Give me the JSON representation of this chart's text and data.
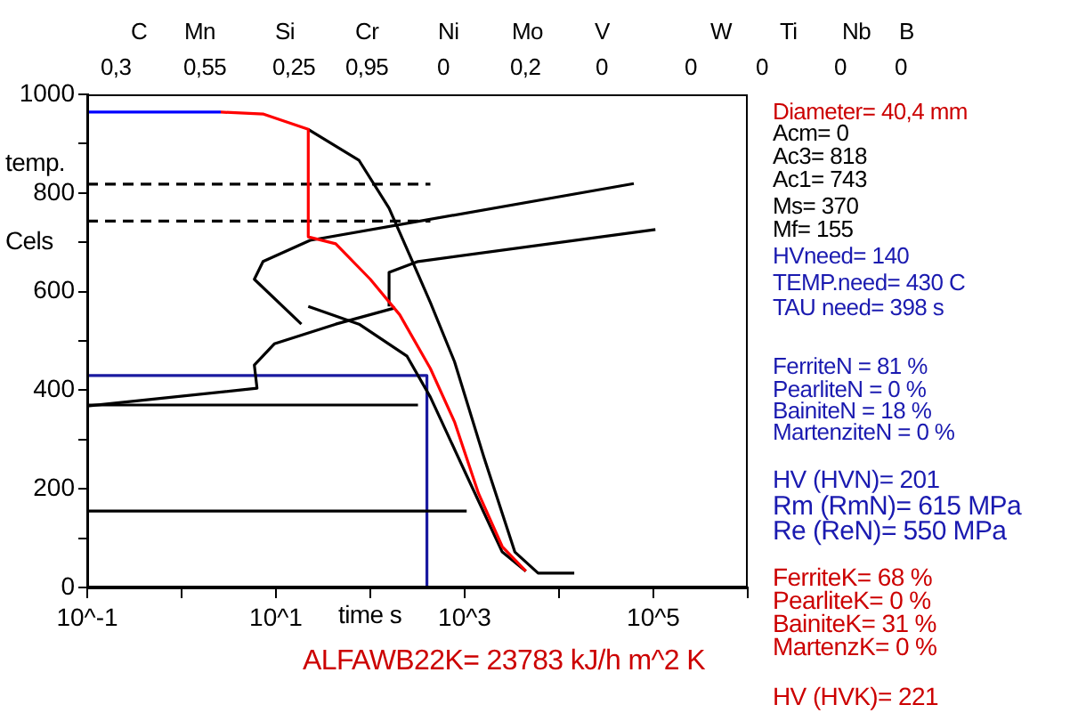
{
  "chart_data": {
    "type": "line",
    "xlabel": "time s",
    "ylabel": "temp. Cels",
    "log": "x",
    "grid": false,
    "legend": false,
    "marker": "none",
    "xlim": [
      0.1,
      1000000
    ],
    "ylim": [
      0,
      1000
    ],
    "xticks": [
      {
        "value": 0.1,
        "label": "10^-1"
      },
      {
        "value": 1,
        "label": null
      },
      {
        "value": 10,
        "label": "10^1"
      },
      {
        "value": 100,
        "label": null
      },
      {
        "value": 1000,
        "label": "10^3"
      },
      {
        "value": 10000,
        "label": null
      },
      {
        "value": 100000,
        "label": "10^5"
      },
      {
        "value": 1000000,
        "label": null
      }
    ],
    "yticks": [
      0,
      {
        "value": 100,
        "label": null
      },
      200,
      {
        "value": 300,
        "label": null
      },
      400,
      {
        "value": 500,
        "label": null
      },
      600,
      {
        "value": 700,
        "label": null
      },
      800,
      {
        "value": 900,
        "label": null
      },
      1000
    ],
    "series": [
      {
        "color": "#0000ff",
        "x": [
          0.1,
          2.6
        ],
        "values": [
          964,
          964
        ]
      },
      {
        "color": "#ff0000",
        "x": [
          2.6,
          7.4,
          22,
          22,
          43,
          100,
          205,
          433,
          780,
          1400,
          2500,
          4450
        ],
        "values": [
          964,
          960,
          929,
          711,
          697,
          625,
          553,
          444,
          336,
          191,
          83,
          33
        ]
      },
      {
        "color": "#000000",
        "x": [
          22,
          76,
          158,
          280,
          433,
          780,
          1600,
          3400,
          6000,
          14500
        ],
        "values": [
          929,
          866,
          769,
          661,
          578,
          458,
          264,
          72,
          29,
          29
        ]
      },
      {
        "color": "#000000",
        "x": [
          22,
          76,
          245,
          433,
          1050,
          2500,
          4450
        ],
        "values": [
          570,
          534,
          469,
          386,
          227,
          72,
          33
        ]
      },
      {
        "color": "#000000",
        "x": [
          18.6,
          5.9,
          7.3,
          23,
          62000
        ],
        "values": [
          534,
          625,
          661,
          704,
          819
        ]
      },
      {
        "color": "#000000",
        "x": [
          158,
          158,
          320,
          105000
        ],
        "values": [
          570,
          639,
          661,
          726
        ]
      },
      {
        "color": "#000000",
        "x": [
          0.1,
          6.3,
          5.9,
          9.6,
          43,
          183
        ],
        "values": [
          368,
          404,
          451,
          494,
          534,
          567
        ]
      },
      {
        "color": "#000000",
        "x": [
          0.1,
          320
        ],
        "values": [
          370,
          370
        ]
      },
      {
        "color": "#000000",
        "x": [
          0.1,
          1050
        ],
        "values": [
          155,
          155
        ]
      },
      {
        "color": "#000000",
        "line_style": "dashed",
        "x": [
          0.1,
          433
        ],
        "values": [
          818,
          818
        ]
      },
      {
        "color": "#000000",
        "line_style": "dashed",
        "x": [
          0.1,
          433
        ],
        "values": [
          743,
          743
        ]
      },
      {
        "color": "#1a1aa0",
        "x": [
          0.1,
          398,
          398
        ],
        "values": [
          430,
          430,
          0
        ]
      }
    ],
    "annotations": [
      "C",
      "Mn",
      "Si",
      "Cr",
      "Ni",
      "Mo",
      "V",
      "W",
      "Ti",
      "Nb",
      "B",
      "0,3",
      "0,55",
      "0,25",
      "0,95",
      "0",
      "0,2",
      "0",
      "0",
      "0",
      "0",
      "0",
      "ALFAWB22K= 23783 kJ/h m^2 K",
      "Diameter= 40,4 mm",
      "Acm= 0",
      "Ac3= 818",
      "Ac1= 743",
      "Ms= 370",
      "Mf= 155",
      "HVneed= 140",
      "TEMP.need= 430 C",
      "TAU need= 398 s",
      "FerriteN = 81 %",
      "PearliteN = 0 %",
      "BainiteN = 18 %",
      "MartenziteN = 0 %",
      "HV (HVN)= 201",
      "Rm (RmN)= 615 MPa",
      "Re (ReN)= 550 MPa",
      "FerriteK= 68 %",
      "PearliteK= 0 %",
      "BainiteK= 31 %",
      "MartenzK= 0 %",
      "HV (HVK)= 221"
    ]
  }
}
